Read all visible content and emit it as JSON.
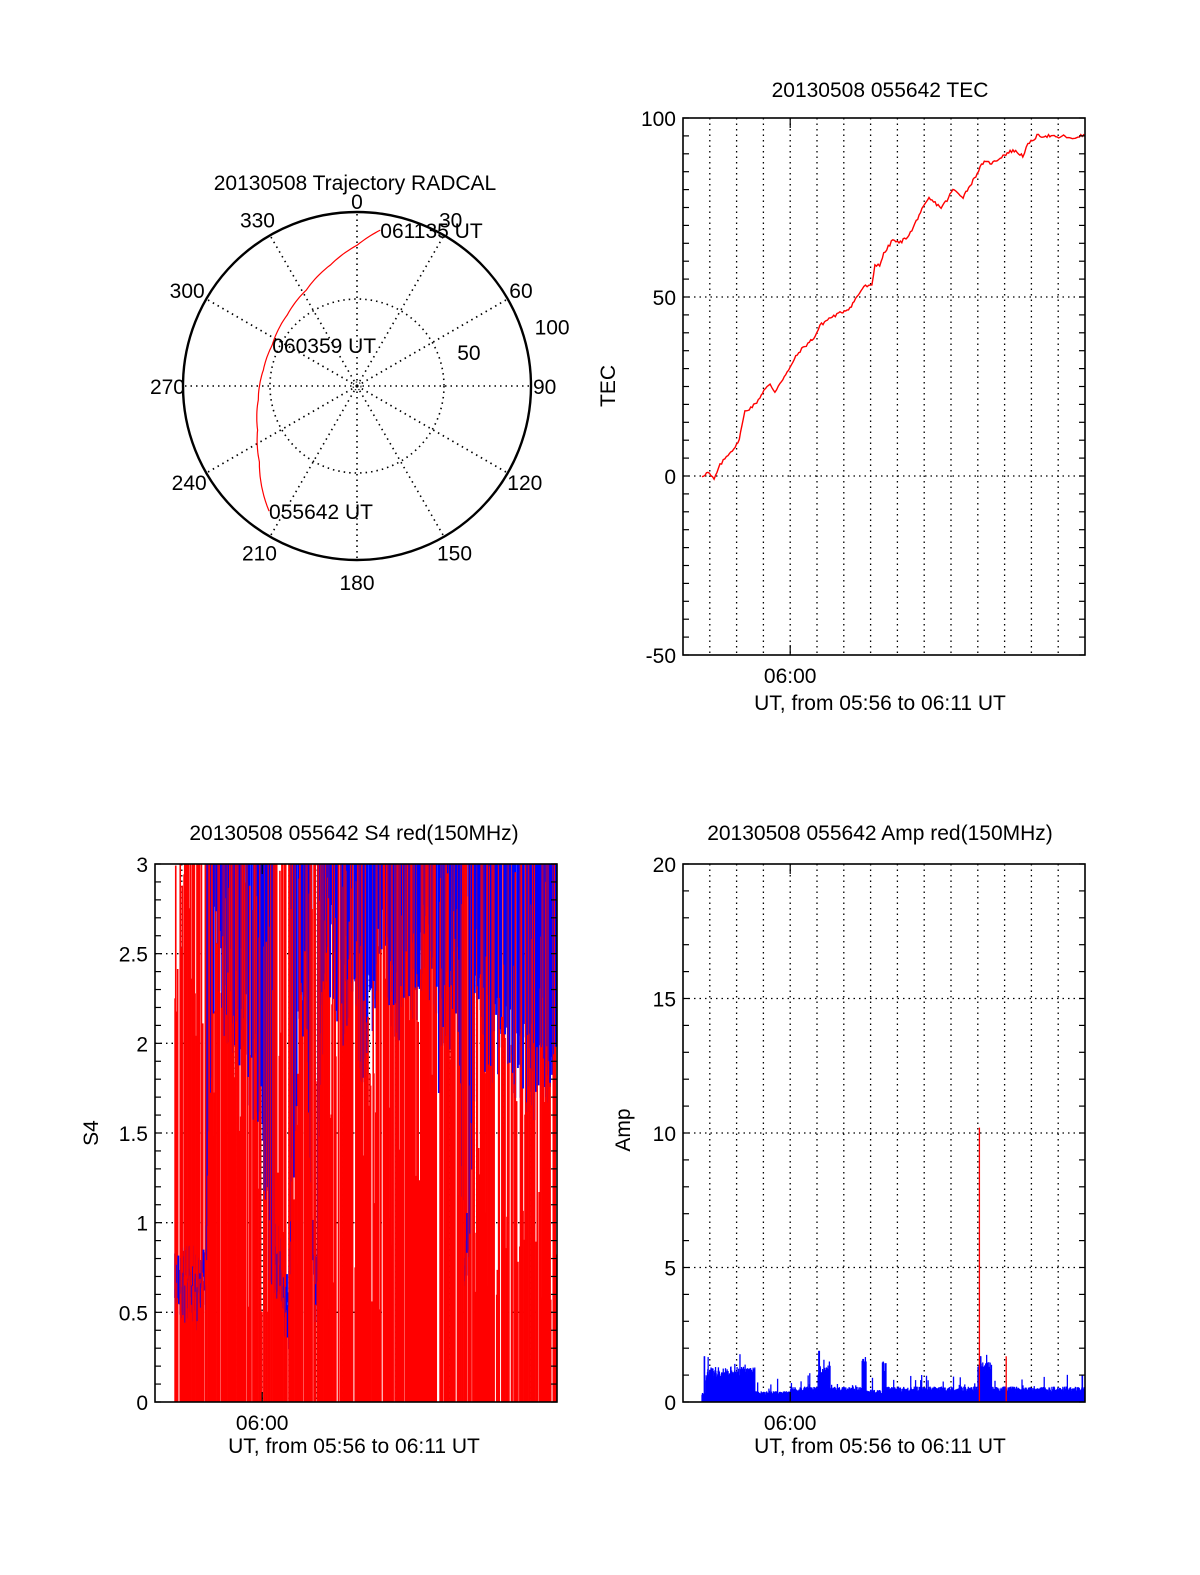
{
  "chart_data": [
    {
      "type": "polar",
      "title": "20130508 Trajectory RADCAL",
      "azimuth_labels": [
        "0",
        "30",
        "60",
        "90",
        "120",
        "150",
        "180",
        "210",
        "240",
        "270",
        "300",
        "330"
      ],
      "azimuth_values": [
        0,
        30,
        60,
        90,
        120,
        150,
        180,
        210,
        240,
        270,
        300,
        330
      ],
      "radial_labels": [
        "50",
        "100"
      ],
      "radial_values": [
        50,
        100
      ],
      "rlim": [
        0,
        100
      ],
      "series": [
        {
          "name": "trajectory",
          "color": "#ff0000",
          "azimuth": [
            215.1,
            232.1,
            246.1,
            261.9,
            279.7,
            295.8,
            315.5,
            332.2,
            347.6,
            0.1,
            8.5
          ],
          "radius": [
            87.9,
            71.1,
            62.5,
            57.3,
            54.6,
            54.1,
            57.2,
            62.4,
            71.2,
            81.0,
            90.6
          ]
        }
      ],
      "annotations": [
        {
          "text": "055642 UT",
          "azimuth": 215.1,
          "radius": 87.9
        },
        {
          "text": "060359 UT",
          "azimuth": 295.8,
          "radius": 54.1
        },
        {
          "text": "061135 UT",
          "azimuth": 8.5,
          "radius": 90.6
        }
      ]
    },
    {
      "type": "line",
      "title": "20130508 055642 TEC",
      "xlabel": "UT, from 05:56 to 06:11 UT",
      "ylabel": "TEC",
      "xlim_minutes": [
        0,
        15
      ],
      "x_origin": "05:56",
      "x_tick_labels": [
        "06:00"
      ],
      "x_tick_values": [
        4
      ],
      "ylim": [
        -50,
        100
      ],
      "y_ticks": [
        -50,
        0,
        50,
        100
      ],
      "y_tick_labels": [
        "-50",
        "0",
        "50",
        "100"
      ],
      "grid": true,
      "series": [
        {
          "name": "TEC",
          "color": "#ff0000",
          "x": [
            0.71,
            0.93,
            1.16,
            1.38,
            1.68,
            2.05,
            2.2,
            2.31,
            2.69,
            2.87,
            3.02,
            3.25,
            3.43,
            3.62,
            3.99,
            4.1,
            4.37,
            4.66,
            4.93,
            5.11,
            5.45,
            5.86,
            6.23,
            6.49,
            6.75,
            7.05,
            7.16,
            7.34,
            7.49,
            7.83,
            8.06,
            8.32,
            8.54,
            8.81,
            9.18,
            9.63,
            9.85,
            10.07,
            10.45,
            10.82,
            11.19,
            11.57,
            11.94,
            12.31,
            12.68,
            12.87,
            13.21,
            13.69,
            13.96,
            14.26,
            14.48,
            14.79,
            15.0
          ],
          "y": [
            0,
            1,
            -1,
            3,
            6,
            9,
            14,
            18,
            20,
            22,
            24,
            25.5,
            23.5,
            26,
            30,
            32,
            35,
            37,
            39,
            42,
            44,
            45.5,
            47,
            50,
            53,
            53,
            59,
            59,
            62,
            66,
            65,
            66.5,
            68.5,
            73,
            77.5,
            75,
            77,
            80,
            78,
            82.5,
            87.5,
            87.5,
            89.5,
            91,
            89.5,
            92.5,
            95,
            95,
            94.5,
            95,
            94,
            95,
            95
          ]
        }
      ]
    },
    {
      "type": "bar",
      "title": "20130508 055642 S4 red(150MHz)",
      "xlabel": "UT, from 05:56 to 06:11 UT",
      "ylabel": "S4",
      "xlim_minutes": [
        0,
        15
      ],
      "x_origin": "05:56",
      "x_tick_labels": [
        "06:00"
      ],
      "x_tick_values": [
        4
      ],
      "ylim": [
        0,
        3
      ],
      "y_ticks": [
        0,
        0.5,
        1,
        1.5,
        2,
        2.5,
        3
      ],
      "y_tick_labels": [
        "0",
        "0.5",
        "1",
        "1.5",
        "2",
        "2.5",
        "3"
      ],
      "grid": true,
      "series": [
        {
          "name": "S4 red",
          "color": "#ff0000",
          "x_start": 0.75,
          "x_end": 15.0,
          "typical_range": [
            0.5,
            3.0
          ],
          "saturated_fraction": 0.55
        },
        {
          "name": "S4 blue",
          "color": "#0000ff",
          "x_start": 0.75,
          "x_end": 15.0,
          "envelope_x": [
            0.75,
            1.2,
            1.9,
            2.2,
            2.7,
            3.2,
            3.9,
            4.3,
            4.6,
            5.0,
            5.3,
            5.6,
            6.0,
            6.3,
            6.6,
            7.0,
            7.4,
            7.8,
            8.2,
            8.6,
            9.0,
            9.4,
            9.8,
            10.2,
            10.6,
            11.0,
            11.3,
            11.6,
            12.0,
            12.5,
            13.0,
            13.5,
            14.0,
            14.5,
            15.0
          ],
          "envelope_y": [
            0.75,
            0.75,
            0.75,
            2.8,
            2.6,
            2.4,
            2.0,
            1.2,
            0.9,
            0.6,
            2.3,
            2.7,
            0.5,
            2.7,
            2.9,
            2.5,
            2.8,
            2.2,
            2.6,
            2.9,
            2.5,
            2.7,
            2.6,
            2.9,
            2.3,
            2.5,
            2.7,
            0.75,
            2.6,
            2.3,
            2.5,
            2.2,
            2.1,
            2.3,
            2.2
          ]
        }
      ]
    },
    {
      "type": "bar",
      "title": "20130508 055642 Amp red(150MHz)",
      "xlabel": "UT, from 05:56 to 06:11 UT",
      "ylabel": "Amp",
      "xlim_minutes": [
        0,
        15
      ],
      "x_origin": "05:56",
      "x_tick_labels": [
        "06:00"
      ],
      "x_tick_values": [
        4
      ],
      "ylim": [
        0,
        20
      ],
      "y_ticks": [
        0,
        5,
        10,
        15,
        20
      ],
      "y_tick_labels": [
        "0",
        "5",
        "10",
        "15",
        "20"
      ],
      "grid": true,
      "series": [
        {
          "name": "Amp blue",
          "color": "#0000ff",
          "segments_x": [
            0.71,
            0.86,
            2.69,
            4.0,
            5.04,
            5.49,
            6.68,
            6.83,
            7.43,
            7.58,
            11.0,
            11.52,
            15.0
          ],
          "segments_level": [
            0.3,
            1.15,
            0.35,
            0.5,
            1.2,
            0.5,
            1.4,
            0.4,
            1.3,
            0.5,
            1.3,
            0.5
          ],
          "peaks_x": [
            0.8,
            5.08,
            6.72,
            7.47,
            11.1,
            14.9
          ],
          "peaks_y": [
            1.7,
            1.9,
            1.6,
            1.5,
            1.7,
            1.0
          ]
        },
        {
          "name": "Amp red",
          "color": "#ff0000",
          "spikes_x": [
            11.06,
            12.06
          ],
          "spikes_y": [
            10.2,
            1.7
          ]
        }
      ]
    }
  ]
}
